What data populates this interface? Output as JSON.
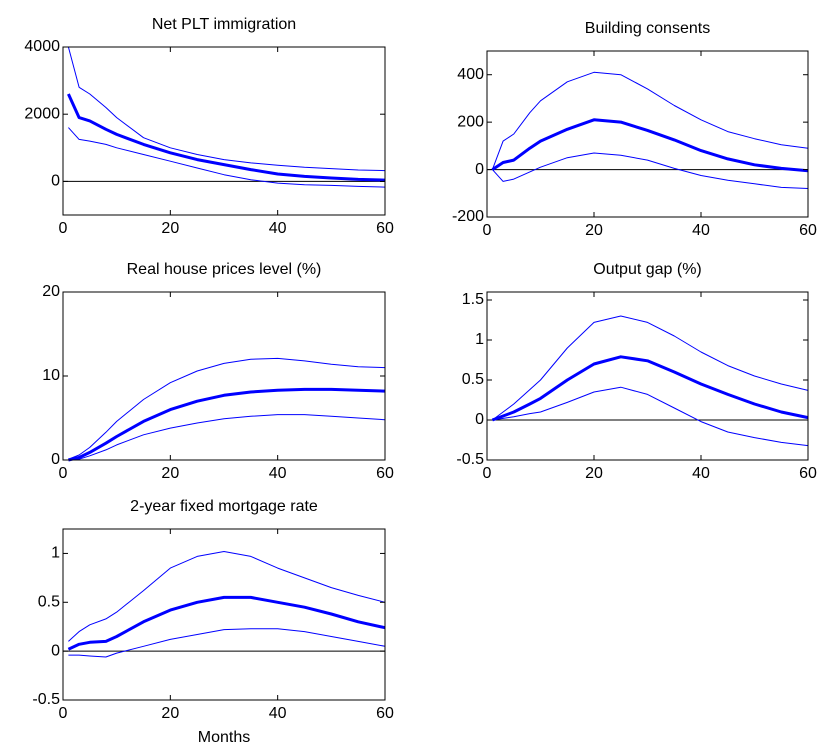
{
  "chart_data": [
    {
      "type": "line",
      "title": "Net PLT immigration",
      "x": [
        1,
        3,
        5,
        8,
        10,
        15,
        20,
        25,
        30,
        35,
        40,
        45,
        50,
        55,
        60
      ],
      "series": [
        {
          "color": "#0000ff",
          "line_width": 3,
          "values": [
            2600,
            1900,
            1800,
            1550,
            1400,
            1100,
            850,
            650,
            500,
            350,
            220,
            150,
            100,
            60,
            40
          ]
        },
        {
          "color": "#0000ff",
          "line_width": 1,
          "values": [
            4000,
            2800,
            2600,
            2200,
            1900,
            1300,
            1000,
            800,
            650,
            550,
            480,
            420,
            380,
            340,
            320
          ]
        },
        {
          "color": "#0000ff",
          "line_width": 1,
          "values": [
            1600,
            1250,
            1200,
            1100,
            1000,
            800,
            600,
            400,
            200,
            50,
            -50,
            -100,
            -120,
            -150,
            -170
          ]
        }
      ],
      "xlim": [
        0,
        60
      ],
      "xticks": [
        0,
        20,
        40,
        60
      ],
      "ylim": [
        -1000,
        4000
      ],
      "yticks": [
        0,
        2000,
        4000
      ],
      "zero_line": true
    },
    {
      "type": "line",
      "title": "Building consents",
      "x": [
        1,
        3,
        5,
        8,
        10,
        15,
        20,
        25,
        30,
        35,
        40,
        45,
        50,
        55,
        60
      ],
      "series": [
        {
          "color": "#0000ff",
          "line_width": 3,
          "values": [
            0,
            30,
            40,
            90,
            120,
            170,
            210,
            200,
            165,
            125,
            80,
            45,
            20,
            5,
            -5
          ]
        },
        {
          "color": "#0000ff",
          "line_width": 1,
          "values": [
            0,
            120,
            150,
            240,
            290,
            370,
            410,
            400,
            340,
            270,
            210,
            160,
            130,
            105,
            90
          ]
        },
        {
          "color": "#0000ff",
          "line_width": 1,
          "values": [
            0,
            -50,
            -40,
            -10,
            10,
            50,
            70,
            60,
            40,
            5,
            -25,
            -45,
            -60,
            -75,
            -80
          ]
        }
      ],
      "xlim": [
        0,
        60
      ],
      "xticks": [
        0,
        20,
        40,
        60
      ],
      "ylim": [
        -200,
        500
      ],
      "yticks": [
        -200,
        0,
        200,
        400
      ],
      "zero_line": true
    },
    {
      "type": "line",
      "title": "Real house prices level (%)",
      "x": [
        1,
        3,
        5,
        8,
        10,
        15,
        20,
        25,
        30,
        35,
        40,
        45,
        50,
        55,
        60
      ],
      "series": [
        {
          "color": "#0000ff",
          "line_width": 3,
          "values": [
            0,
            0.3,
            0.9,
            2,
            2.8,
            4.6,
            6,
            7,
            7.7,
            8.1,
            8.3,
            8.4,
            8.4,
            8.3,
            8.2
          ]
        },
        {
          "color": "#0000ff",
          "line_width": 1,
          "values": [
            0.1,
            0.6,
            1.5,
            3.3,
            4.6,
            7.2,
            9.2,
            10.6,
            11.5,
            12,
            12.1,
            11.8,
            11.4,
            11.1,
            11
          ]
        },
        {
          "color": "#0000ff",
          "line_width": 1,
          "values": [
            0,
            0.1,
            0.5,
            1.2,
            1.8,
            3,
            3.8,
            4.4,
            4.9,
            5.2,
            5.4,
            5.4,
            5.2,
            5,
            4.8
          ]
        }
      ],
      "xlim": [
        0,
        60
      ],
      "xticks": [
        0,
        20,
        40,
        60
      ],
      "ylim": [
        0,
        20
      ],
      "yticks": [
        0,
        10,
        20
      ],
      "zero_line": true
    },
    {
      "type": "line",
      "title": "Output gap (%)",
      "x": [
        1,
        3,
        5,
        8,
        10,
        15,
        20,
        25,
        30,
        35,
        40,
        45,
        50,
        55,
        60
      ],
      "series": [
        {
          "color": "#0000ff",
          "line_width": 3,
          "values": [
            0,
            0.05,
            0.1,
            0.2,
            0.27,
            0.5,
            0.7,
            0.79,
            0.74,
            0.6,
            0.45,
            0.32,
            0.2,
            0.1,
            0.03
          ]
        },
        {
          "color": "#0000ff",
          "line_width": 1,
          "values": [
            0,
            0.1,
            0.2,
            0.38,
            0.5,
            0.9,
            1.22,
            1.3,
            1.22,
            1.05,
            0.85,
            0.68,
            0.55,
            0.45,
            0.37
          ]
        },
        {
          "color": "#0000ff",
          "line_width": 1,
          "values": [
            0,
            0.02,
            0.04,
            0.08,
            0.1,
            0.22,
            0.35,
            0.41,
            0.32,
            0.15,
            -0.02,
            -0.15,
            -0.22,
            -0.28,
            -0.32
          ]
        }
      ],
      "xlim": [
        0,
        60
      ],
      "xticks": [
        0,
        20,
        40,
        60
      ],
      "ylim": [
        -0.5,
        1.6
      ],
      "yticks": [
        -0.5,
        0,
        0.5,
        1,
        1.5
      ],
      "zero_line": true
    },
    {
      "type": "line",
      "title": "2-year fixed mortgage rate",
      "xlabel": "Months",
      "x": [
        1,
        3,
        5,
        8,
        10,
        15,
        20,
        25,
        30,
        35,
        40,
        45,
        50,
        55,
        60
      ],
      "series": [
        {
          "color": "#0000ff",
          "line_width": 3,
          "values": [
            0.02,
            0.07,
            0.09,
            0.1,
            0.15,
            0.3,
            0.42,
            0.5,
            0.55,
            0.55,
            0.5,
            0.45,
            0.38,
            0.3,
            0.24
          ]
        },
        {
          "color": "#0000ff",
          "line_width": 1,
          "values": [
            0.1,
            0.2,
            0.27,
            0.33,
            0.4,
            0.62,
            0.85,
            0.97,
            1.02,
            0.97,
            0.85,
            0.75,
            0.65,
            0.57,
            0.5
          ]
        },
        {
          "color": "#0000ff",
          "line_width": 1,
          "values": [
            -0.04,
            -0.04,
            -0.05,
            -0.06,
            -0.02,
            0.05,
            0.12,
            0.17,
            0.22,
            0.23,
            0.23,
            0.2,
            0.15,
            0.1,
            0.05
          ]
        }
      ],
      "xlim": [
        0,
        60
      ],
      "xticks": [
        0,
        20,
        40,
        60
      ],
      "ylim": [
        -0.5,
        1.25
      ],
      "yticks": [
        -0.5,
        0,
        0.5,
        1
      ],
      "zero_line": true
    }
  ]
}
